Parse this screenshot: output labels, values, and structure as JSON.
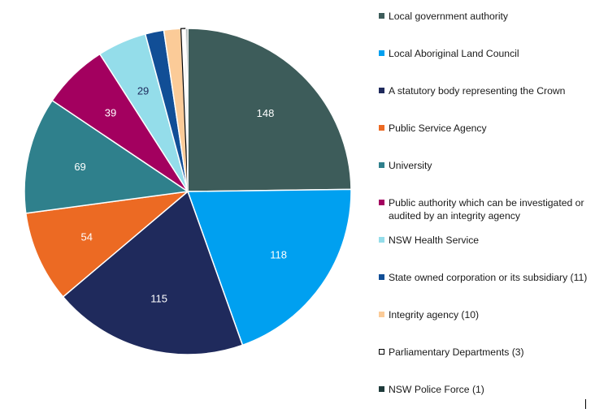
{
  "chart_data": {
    "type": "pie",
    "title": "",
    "slices": [
      {
        "label": "Local government authority",
        "value": 148,
        "color": "#3D5C5A",
        "label_color": "#ffffff"
      },
      {
        "label": "Local Aboriginal Land Council",
        "value": 118,
        "color": "#00A0F0",
        "label_color": "#ffffff"
      },
      {
        "label": "A statutory body representing the Crown",
        "value": 115,
        "color": "#1F2A5C",
        "label_color": "#ffffff"
      },
      {
        "label": "Public Service Agency",
        "value": 54,
        "color": "#EC6A23",
        "label_color": "#ffffff"
      },
      {
        "label": "University",
        "value": 69,
        "color": "#2F808C",
        "label_color": "#ffffff"
      },
      {
        "label": "Public authority which can be investigated or audited by an integrity agency",
        "value": 39,
        "color": "#A3005F",
        "label_color": "#ffffff"
      },
      {
        "label": "NSW Health Service",
        "value": 29,
        "color": "#94DDEA",
        "label_color": "#1F2A5C"
      },
      {
        "label": "State owned corporation or its subsidiary (11)",
        "value": 11,
        "color": "#114E96",
        "label_color": null
      },
      {
        "label": "Integrity agency (10)",
        "value": 10,
        "color": "#FBCB98",
        "label_color": null
      },
      {
        "label": "Parliamentary Departments (3)",
        "value": 3,
        "color": "#FFFFFF",
        "border": "#000000",
        "label_color": null
      },
      {
        "label": "NSW Police Force (1)",
        "value": 1,
        "color": "#1E3B3B",
        "label_color": null
      }
    ],
    "legend_position": "right"
  }
}
